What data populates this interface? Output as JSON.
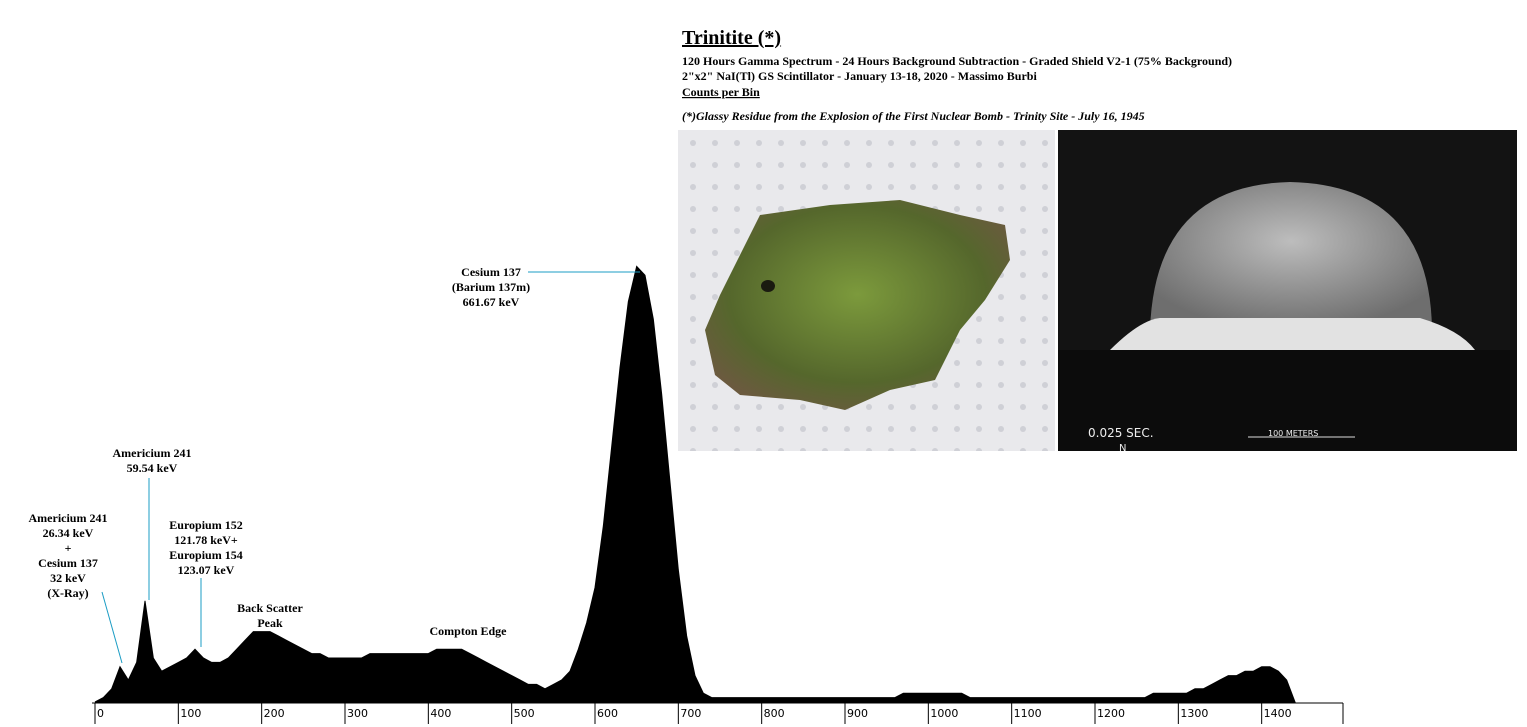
{
  "chart_data": {
    "type": "area",
    "title": "Trinitite (*)",
    "subtitle": [
      "120 Hours Gamma Spectrum - 24 Hours Background Subtraction - Graded Shield V2-1 (75% Background)",
      "2\"x2\" NaI(Tl) GS Scintillator - January 13-18, 2020 - Massimo Burbi"
    ],
    "ylabel": "Counts per Bin",
    "note": "(*)Glassy Residue from the Explosion of the First Nuclear Bomb - Trinity Site - July 16, 1945",
    "color": "#000000",
    "xlim": [
      0,
      1500
    ],
    "ylim": [
      0,
      100
    ],
    "xticks": [
      0,
      100,
      200,
      300,
      400,
      500,
      600,
      700,
      800,
      900,
      1000,
      1100,
      1200,
      1300,
      1400
    ],
    "x": [
      0,
      10,
      20,
      30,
      40,
      50,
      60,
      70,
      80,
      90,
      100,
      110,
      120,
      130,
      140,
      150,
      160,
      170,
      180,
      190,
      200,
      210,
      220,
      230,
      240,
      250,
      260,
      270,
      280,
      290,
      300,
      310,
      320,
      330,
      340,
      350,
      360,
      370,
      380,
      390,
      400,
      410,
      420,
      430,
      440,
      450,
      460,
      470,
      480,
      490,
      500,
      510,
      520,
      530,
      540,
      550,
      560,
      570,
      580,
      590,
      600,
      610,
      620,
      630,
      640,
      650,
      660,
      670,
      680,
      690,
      700,
      710,
      720,
      730,
      740,
      750,
      760,
      770,
      780,
      790,
      800,
      810,
      820,
      830,
      840,
      850,
      860,
      870,
      880,
      890,
      900,
      910,
      920,
      930,
      940,
      950,
      960,
      970,
      980,
      990,
      1000,
      1010,
      1020,
      1030,
      1040,
      1050,
      1060,
      1070,
      1080,
      1090,
      1100,
      1110,
      1120,
      1130,
      1140,
      1150,
      1160,
      1170,
      1180,
      1190,
      1200,
      1210,
      1220,
      1230,
      1240,
      1250,
      1260,
      1270,
      1280,
      1290,
      1300,
      1310,
      1320,
      1330,
      1340,
      1350,
      1360,
      1370,
      1380,
      1390,
      1400,
      1410,
      1420,
      1430,
      1440
    ],
    "values": [
      0,
      1,
      3,
      8,
      5,
      9,
      23,
      10,
      7,
      8,
      9,
      10,
      12,
      10,
      9,
      9,
      10,
      12,
      14,
      16,
      16,
      16,
      15,
      14,
      13,
      12,
      11,
      11,
      10,
      10,
      10,
      10,
      10,
      11,
      11,
      11,
      11,
      11,
      11,
      11,
      11,
      12,
      12,
      12,
      12,
      11,
      10,
      9,
      8,
      7,
      6,
      5,
      4,
      4,
      3,
      4,
      5,
      7,
      12,
      18,
      26,
      40,
      58,
      76,
      91,
      99,
      97,
      87,
      70,
      50,
      30,
      15,
      6,
      2,
      1,
      1,
      1,
      1,
      1,
      1,
      1,
      1,
      1,
      1,
      1,
      1,
      1,
      1,
      1,
      1,
      1,
      1,
      1,
      1,
      1,
      1,
      1,
      2,
      2,
      2,
      2,
      2,
      2,
      2,
      2,
      1,
      1,
      1,
      1,
      1,
      1,
      1,
      1,
      1,
      1,
      1,
      1,
      1,
      1,
      1,
      1,
      1,
      1,
      1,
      1,
      1,
      1,
      2,
      2,
      2,
      2,
      2,
      3,
      3,
      4,
      5,
      6,
      6,
      7,
      7,
      8,
      8,
      7,
      5,
      0
    ],
    "annotations": [
      [
        "Americium 241",
        "26.34 keV",
        "+",
        "Cesium 137",
        "32 keV",
        "(X-Ray)"
      ],
      [
        "Americium 241",
        "59.54 keV"
      ],
      [
        "Europium 152",
        "121.78 keV+",
        "Europium 154",
        "123.07 keV"
      ],
      [
        "Back Scatter",
        "Peak"
      ],
      [
        "Compton Edge"
      ],
      [
        "Cesium 137",
        "(Barium 137m)",
        "661.67 keV"
      ]
    ],
    "photo_captions": [
      "0.025 SEC.",
      "N",
      "100 METERS"
    ]
  }
}
